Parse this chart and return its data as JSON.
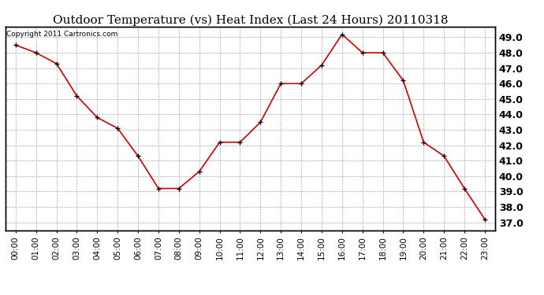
{
  "title": "Outdoor Temperature (vs) Heat Index (Last 24 Hours) 20110318",
  "copyright_text": "Copyright 2011 Cartronics.com",
  "x_labels": [
    "00:00",
    "01:00",
    "02:00",
    "03:00",
    "04:00",
    "05:00",
    "06:00",
    "07:00",
    "08:00",
    "09:00",
    "10:00",
    "11:00",
    "12:00",
    "13:00",
    "14:00",
    "15:00",
    "16:00",
    "17:00",
    "18:00",
    "19:00",
    "20:00",
    "21:00",
    "22:00",
    "23:00"
  ],
  "y_values": [
    48.5,
    48.0,
    47.3,
    45.2,
    43.8,
    43.1,
    41.3,
    39.2,
    39.2,
    40.3,
    42.2,
    42.2,
    43.5,
    46.0,
    46.0,
    47.2,
    49.2,
    48.0,
    48.0,
    46.2,
    42.2,
    41.3,
    39.2,
    37.2
  ],
  "line_color": "#cc0000",
  "marker": "+",
  "marker_size": 5,
  "marker_color": "#000000",
  "ylim": [
    36.5,
    49.7
  ],
  "yticks": [
    37.0,
    38.0,
    39.0,
    40.0,
    41.0,
    42.0,
    43.0,
    44.0,
    45.0,
    46.0,
    47.0,
    48.0,
    49.0
  ],
  "grid_color": "#aaaaaa",
  "background_color": "#ffffff",
  "title_fontsize": 11,
  "copyright_fontsize": 6.5,
  "tick_fontsize": 7.5,
  "ylabel_fontsize": 9
}
